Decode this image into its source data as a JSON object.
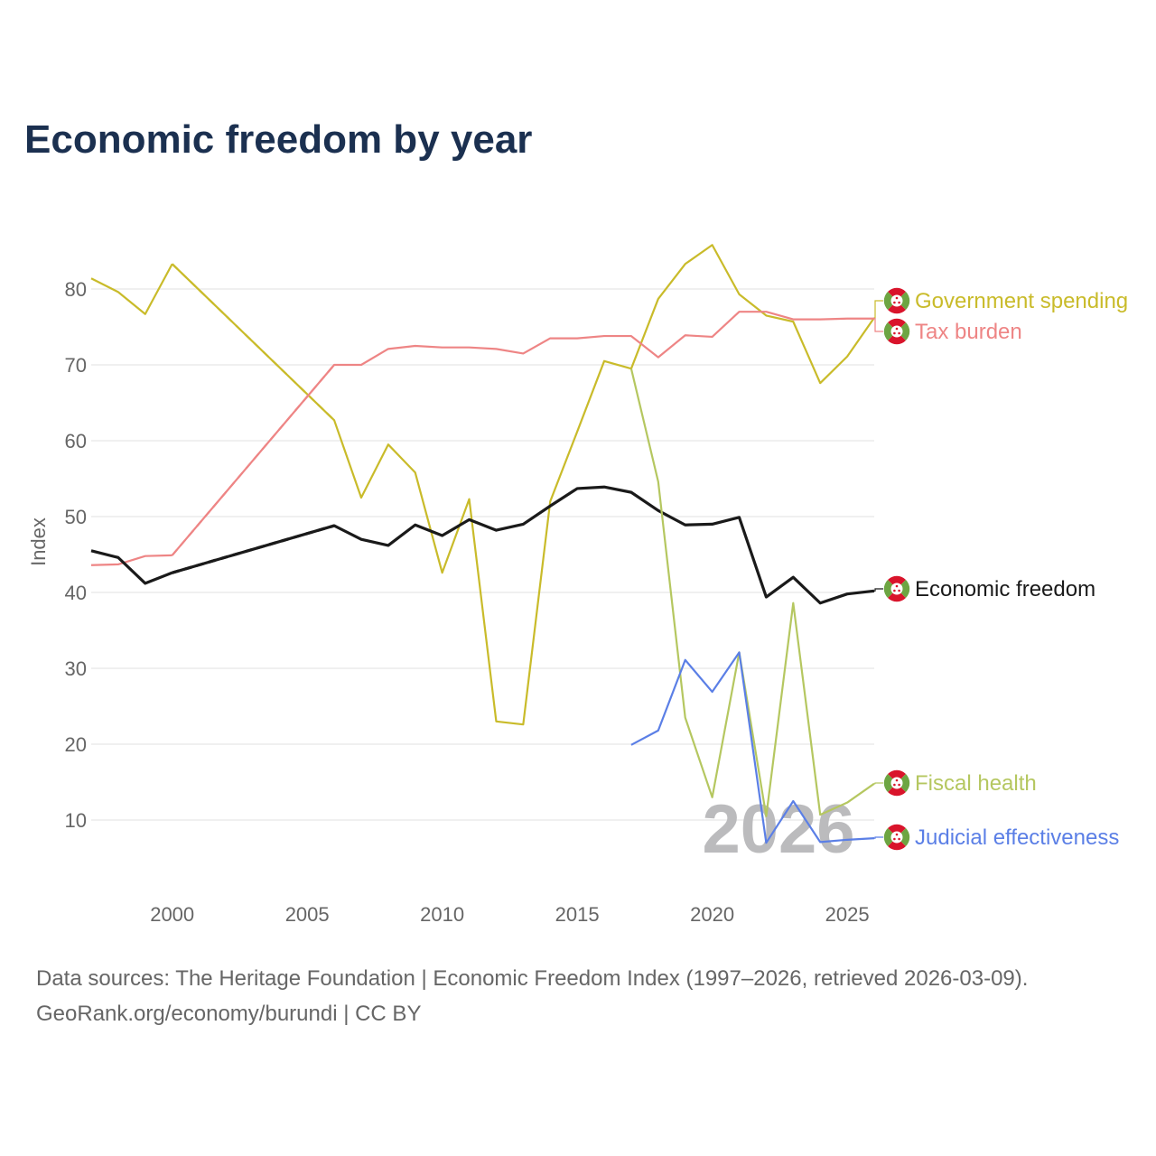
{
  "title": "Economic freedom by year",
  "watermark_year": "2026",
  "footer": {
    "line1": "Data sources: The Heritage Foundation | Economic Freedom Index (1997–2026, retrieved 2026-03-09).",
    "line2": "GeoRank.org/economy/burundi | CC BY"
  },
  "flag_icon": "burundi-flag-icon",
  "chart_data": {
    "type": "line",
    "title": "Economic freedom by year",
    "xlabel": "",
    "ylabel": "Index",
    "xlim": [
      1997,
      2026
    ],
    "ylim": [
      0,
      90
    ],
    "grid": true,
    "x_ticks": [
      2000,
      2005,
      2010,
      2015,
      2020,
      2025
    ],
    "y_ticks": [
      10,
      20,
      30,
      40,
      50,
      60,
      70,
      80
    ],
    "legend": "right (direct labels)",
    "x": [
      1997,
      1998,
      1999,
      2000,
      2001,
      2002,
      2003,
      2004,
      2005,
      2006,
      2007,
      2008,
      2009,
      2010,
      2011,
      2012,
      2013,
      2014,
      2015,
      2016,
      2017,
      2018,
      2019,
      2020,
      2021,
      2022,
      2023,
      2024,
      2025,
      2026
    ],
    "series": [
      {
        "name": "Government spending",
        "color": "#c9bb2a",
        "width": 2.2,
        "values": [
          81.4,
          79.6,
          76.7,
          83.3,
          null,
          null,
          null,
          null,
          null,
          62.7,
          52.5,
          59.5,
          55.8,
          42.6,
          52.3,
          23.0,
          22.6,
          52.0,
          61.2,
          70.5,
          69.5,
          78.7,
          83.3,
          85.8,
          79.3,
          76.5,
          75.7,
          67.6,
          71.1,
          76.2
        ]
      },
      {
        "name": "Tax burden",
        "color": "#ee8585",
        "width": 2.2,
        "values": [
          43.6,
          43.7,
          44.8,
          44.9,
          null,
          null,
          null,
          null,
          null,
          70.0,
          70.0,
          72.1,
          72.5,
          72.3,
          72.3,
          72.1,
          71.5,
          73.5,
          73.5,
          73.8,
          73.8,
          71.0,
          73.9,
          73.7,
          77.0,
          77.0,
          76.0,
          76.0,
          76.1,
          76.1
        ]
      },
      {
        "name": "Economic freedom",
        "color": "#1a1a1a",
        "width": 3.2,
        "values": [
          45.5,
          44.6,
          41.2,
          42.6,
          null,
          null,
          null,
          null,
          null,
          48.8,
          47.0,
          46.2,
          48.9,
          47.5,
          49.6,
          48.2,
          49.0,
          51.4,
          53.7,
          53.9,
          53.2,
          50.8,
          48.9,
          49.0,
          49.9,
          39.4,
          42.0,
          38.6,
          39.8,
          40.2
        ]
      },
      {
        "name": "Fiscal health",
        "color": "#b5c760",
        "width": 2.2,
        "values": [
          null,
          null,
          null,
          null,
          null,
          null,
          null,
          null,
          null,
          null,
          null,
          null,
          null,
          null,
          null,
          null,
          null,
          null,
          null,
          null,
          69.5,
          54.6,
          23.5,
          13.0,
          32.1,
          10.5,
          38.6,
          10.7,
          12.3,
          14.8
        ]
      },
      {
        "name": "Judicial effectiveness",
        "color": "#5b7fe6",
        "width": 2.2,
        "values": [
          null,
          null,
          null,
          null,
          null,
          null,
          null,
          null,
          null,
          null,
          null,
          null,
          null,
          null,
          null,
          null,
          null,
          null,
          null,
          null,
          19.9,
          21.8,
          31.1,
          26.9,
          32.1,
          7.0,
          12.5,
          7.1,
          7.4,
          7.6
        ]
      }
    ]
  }
}
